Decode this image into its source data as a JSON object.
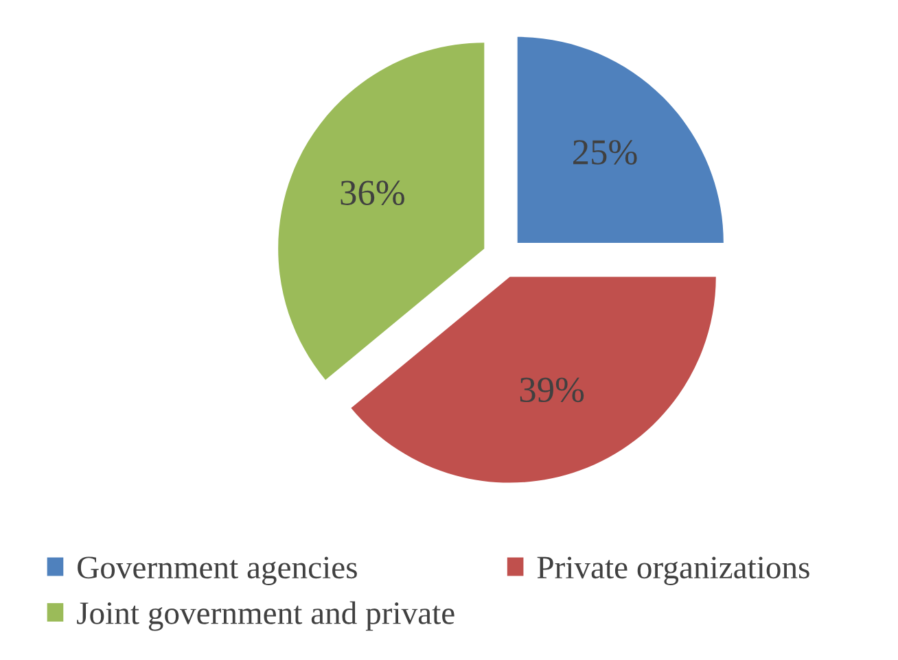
{
  "chart_data": {
    "type": "pie",
    "categories": [
      "Government agencies",
      "Private organizations",
      "Joint government and private"
    ],
    "values": [
      25,
      39,
      36
    ],
    "value_labels": [
      "25%",
      "39%",
      "36%"
    ],
    "colors": [
      "#4f81bd",
      "#c0504d",
      "#9bbb59"
    ],
    "legend": "bottom"
  }
}
